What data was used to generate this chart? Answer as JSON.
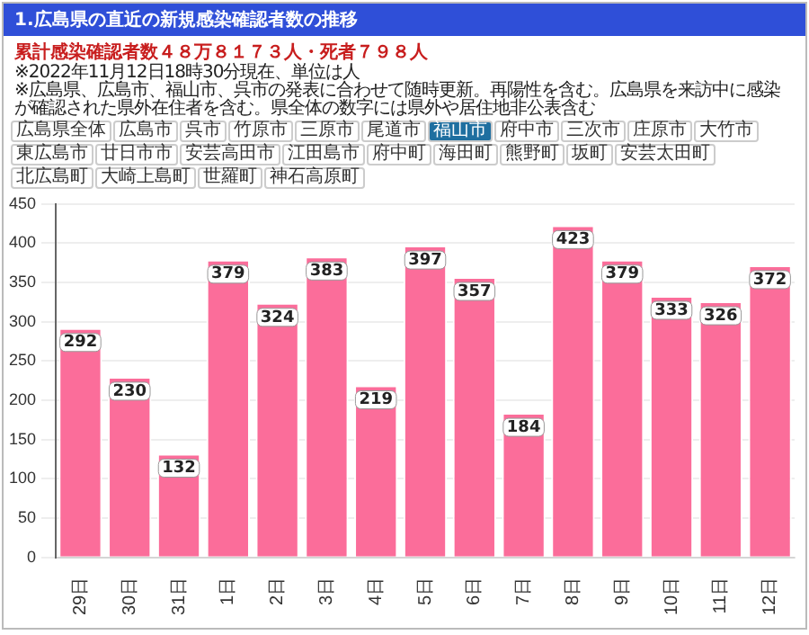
{
  "chart_data": {
    "type": "bar",
    "title": "1.広島県の直近の新規感染確認者数の推移",
    "subtitle": "累計感染確認者数４８万８１７３人・死者７９８人",
    "annotations": [
      "※2022年11月12日18時30分現在、単位は人",
      "※広島県、広島市、福山市、呉市の発表に合わせて随時更新。再陽性を含む。広島県を来訪中に感染が確認された県外在住者を含む。県全体の数字には県外や居住地非公表含む",
      "広島県全体",
      "広島市",
      "呉市",
      "竹原市",
      "三原市",
      "尾道市",
      "福山市",
      "府中市",
      "三次市",
      "庄原市",
      "大竹市",
      "東広島市",
      "廿日市市",
      "安芸高田市",
      "江田島市",
      "府中町",
      "海田町",
      "熊野町",
      "坂町",
      "安芸太田町",
      "北広島町",
      "大崎上島町",
      "世羅町",
      "神石高原町"
    ],
    "categories": [
      "29日",
      "30日",
      "31日",
      "1日",
      "2日",
      "3日",
      "4日",
      "5日",
      "6日",
      "7日",
      "8日",
      "9日",
      "10日",
      "11日",
      "12日"
    ],
    "values": [
      292,
      230,
      132,
      379,
      324,
      383,
      219,
      397,
      357,
      184,
      423,
      379,
      333,
      326,
      372
    ],
    "color": "#fb6d9a",
    "ylim": [
      0,
      450
    ],
    "yticks": [
      0,
      50,
      100,
      150,
      200,
      250,
      300,
      350,
      400,
      450
    ],
    "grid": "y",
    "data_labels": true,
    "legend": false
  }
}
